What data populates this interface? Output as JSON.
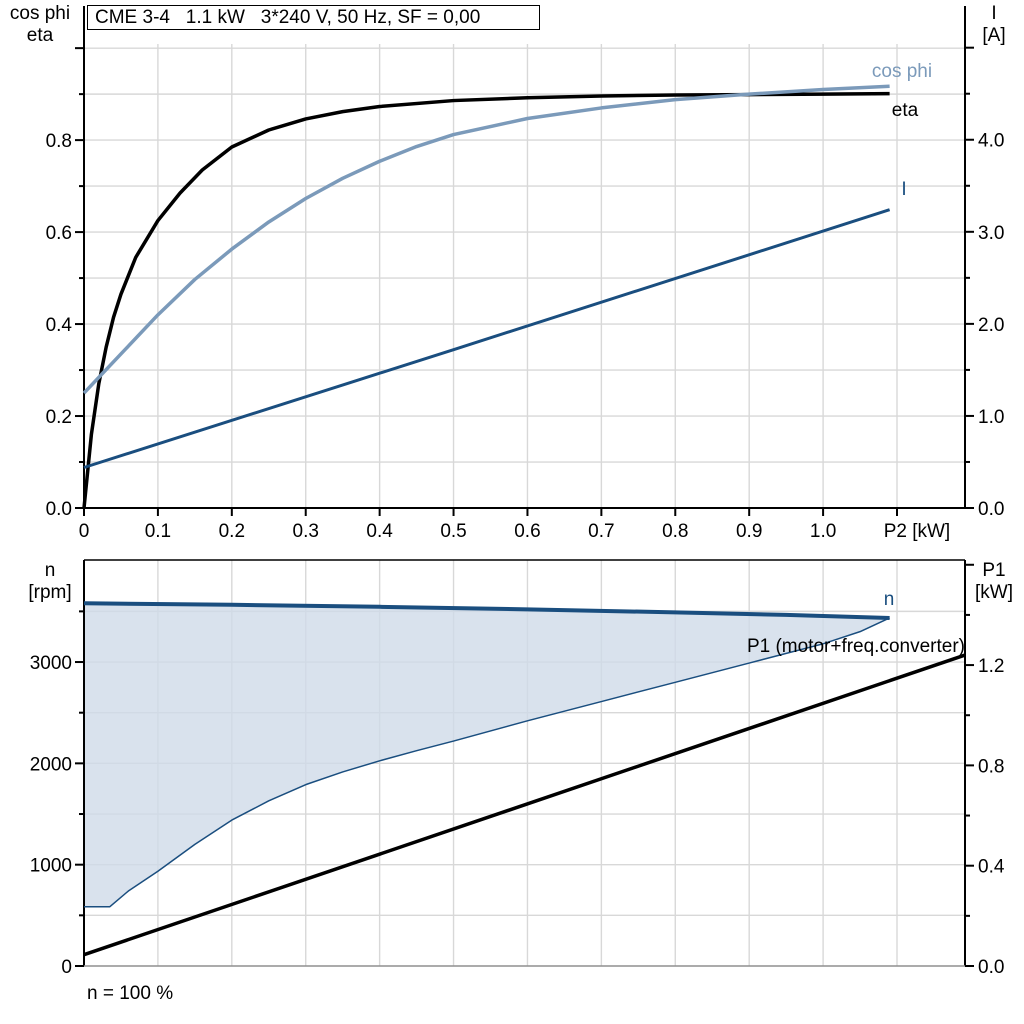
{
  "title_box": {
    "text": "CME 3-4   1.1 kW   3*240 V, 50 Hz, SF = 0,00"
  },
  "footer": {
    "speed_note": "n = 100 %"
  },
  "axis_titles": {
    "top_left": [
      "cos phi",
      "eta"
    ],
    "top_right": [
      "I",
      "[A]"
    ],
    "bottom_left": [
      "n",
      "[rpm]"
    ],
    "bottom_right": [
      "P1",
      "[kW]"
    ]
  },
  "curve_labels": {
    "cos_phi": "cos phi",
    "eta": "eta",
    "current": "I",
    "speed": "n",
    "p1": "P1 (motor+freq.converter)"
  },
  "colors": {
    "eta": "#000000",
    "cos_phi": "#7b9aba",
    "current": "#1a4e7f",
    "speed": "#1a4e7f",
    "duty_fill": "#cfdbe8",
    "p1": "#000000",
    "grid": "#d8d8d8",
    "axis": "#000000",
    "base_axis_gray": "#8f8f8f"
  },
  "chart_data": [
    {
      "type": "line",
      "title": "CME 3-4   1.1 kW   3*240 V, 50 Hz, SF = 0,00",
      "xlabel": "P2 [kW]",
      "ylabel_left": "cos phi / eta",
      "ylabel_right": "I [A]",
      "x_axis": {
        "min": 0,
        "max": 1.192,
        "tick_step": 0.1,
        "grid": true,
        "tick_labels": [
          "0",
          "0.1",
          "0.2",
          "0.3",
          "0.4",
          "0.5",
          "0.6",
          "0.7",
          "0.8",
          "0.9",
          "1.0"
        ],
        "unit_label": "P2 [kW]",
        "unit_label_at": 1.127
      },
      "y_left": {
        "min": 0,
        "max": 1.009,
        "major_tick": 0.2,
        "minor_tick": 0.1,
        "grid_step": 0.1,
        "tick_labels": [
          "0.0",
          "0.2",
          "0.4",
          "0.6",
          "0.8"
        ]
      },
      "y_right": {
        "min": 0,
        "max": 5.04,
        "major_tick": 1.0,
        "minor_tick": 0.5,
        "tick_labels": [
          "0.0",
          "1.0",
          "2.0",
          "3.0",
          "4.0"
        ]
      },
      "series": [
        {
          "name": "eta",
          "axis": "left",
          "color": "#000000",
          "width": 3.5,
          "points": [
            [
              0,
              0
            ],
            [
              0.01,
              0.16
            ],
            [
              0.02,
              0.27
            ],
            [
              0.03,
              0.35
            ],
            [
              0.04,
              0.415
            ],
            [
              0.05,
              0.465
            ],
            [
              0.07,
              0.545
            ],
            [
              0.1,
              0.625
            ],
            [
              0.13,
              0.685
            ],
            [
              0.16,
              0.735
            ],
            [
              0.2,
              0.785
            ],
            [
              0.25,
              0.822
            ],
            [
              0.3,
              0.846
            ],
            [
              0.35,
              0.862
            ],
            [
              0.4,
              0.873
            ],
            [
              0.5,
              0.886
            ],
            [
              0.6,
              0.892
            ],
            [
              0.7,
              0.896
            ],
            [
              0.8,
              0.898
            ],
            [
              0.9,
              0.899
            ],
            [
              1,
              0.9
            ],
            [
              1.09,
              0.901
            ]
          ]
        },
        {
          "name": "cos phi",
          "axis": "left",
          "color": "#7b9aba",
          "width": 3.5,
          "points": [
            [
              0,
              0.25
            ],
            [
              0.05,
              0.335
            ],
            [
              0.1,
              0.42
            ],
            [
              0.15,
              0.497
            ],
            [
              0.2,
              0.563
            ],
            [
              0.25,
              0.622
            ],
            [
              0.3,
              0.673
            ],
            [
              0.35,
              0.717
            ],
            [
              0.4,
              0.754
            ],
            [
              0.45,
              0.786
            ],
            [
              0.5,
              0.812
            ],
            [
              0.6,
              0.847
            ],
            [
              0.7,
              0.87
            ],
            [
              0.8,
              0.888
            ],
            [
              0.9,
              0.9
            ],
            [
              1,
              0.91
            ],
            [
              1.09,
              0.917
            ]
          ]
        },
        {
          "name": "I",
          "axis": "right",
          "color": "#1a4e7f",
          "width": 3,
          "points": [
            [
              0,
              0.44
            ],
            [
              0.5,
              1.72
            ],
            [
              1.09,
              3.24
            ]
          ]
        }
      ],
      "legend_position": "inline-labels-right"
    },
    {
      "type": "line",
      "title": "",
      "xlabel": "",
      "ylabel_left": "n [rpm]",
      "ylabel_right": "P1 [kW]",
      "x_axis": {
        "min": 0,
        "max": 1.192,
        "tick_step": 0.1,
        "grid": true,
        "tick_labels": []
      },
      "y_left": {
        "min": 0,
        "max": 4007,
        "major_tick": 1000,
        "minor_tick": 500,
        "grid_step": 500,
        "tick_labels": [
          "0",
          "1000",
          "2000",
          "3000"
        ]
      },
      "y_right": {
        "min": 0,
        "max": 1.619,
        "major_tick": 0.4,
        "minor_tick": 0.2,
        "tick_labels": [
          "0.0",
          "0.4",
          "0.8",
          "1.2"
        ]
      },
      "series": [
        {
          "name": "n",
          "axis": "left",
          "color": "#1a4e7f",
          "width": 4,
          "fill_between": "n min",
          "fill_color": "#cfdbe8",
          "points": [
            [
              0,
              3580
            ],
            [
              0.2,
              3565
            ],
            [
              0.4,
              3545
            ],
            [
              0.6,
              3520
            ],
            [
              0.8,
              3490
            ],
            [
              0.95,
              3465
            ],
            [
              1.09,
              3435
            ]
          ]
        },
        {
          "name": "n min",
          "axis": "left",
          "color": "#1a4e7f",
          "width": 1.5,
          "points": [
            [
              0,
              585
            ],
            [
              0.035,
              585
            ],
            [
              0.06,
              740
            ],
            [
              0.1,
              935
            ],
            [
              0.15,
              1200
            ],
            [
              0.2,
              1440
            ],
            [
              0.25,
              1630
            ],
            [
              0.3,
              1790
            ],
            [
              0.35,
              1915
            ],
            [
              0.4,
              2025
            ],
            [
              0.45,
              2125
            ],
            [
              0.5,
              2220
            ],
            [
              0.6,
              2420
            ],
            [
              0.7,
              2610
            ],
            [
              0.8,
              2800
            ],
            [
              0.9,
              2990
            ],
            [
              1,
              3180
            ],
            [
              1.05,
              3300
            ],
            [
              1.09,
              3435
            ]
          ]
        },
        {
          "name": "P1 (motor+freq.converter)",
          "axis": "right",
          "color": "#000000",
          "width": 3.5,
          "points": [
            [
              0,
              0.045
            ],
            [
              1.192,
              1.24
            ]
          ]
        }
      ],
      "annotations": {
        "speed_note": "n = 100 %"
      }
    }
  ]
}
